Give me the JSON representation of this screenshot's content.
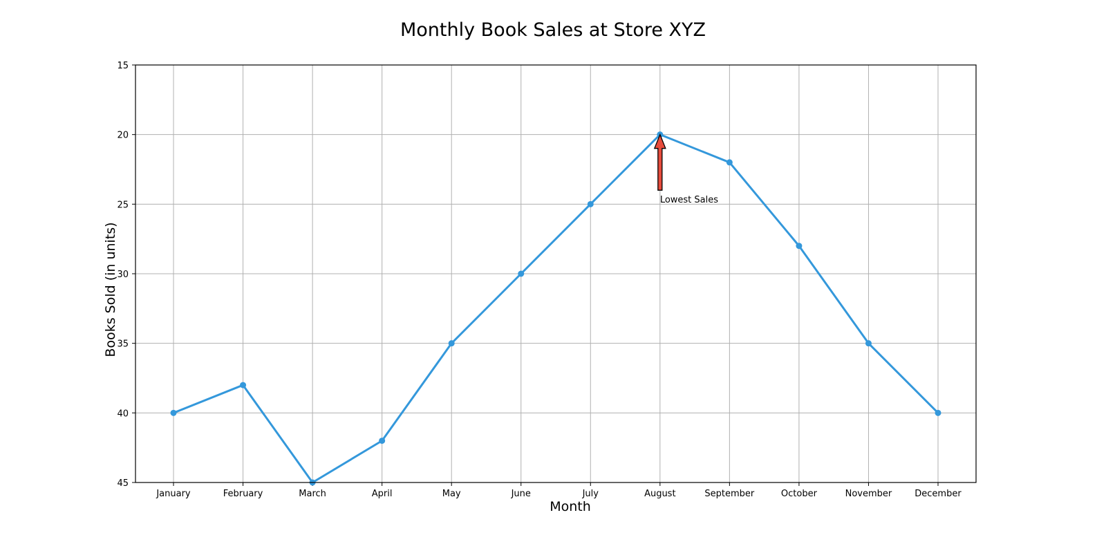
{
  "chart_data": {
    "type": "line",
    "title": "Monthly Book Sales at Store XYZ",
    "xlabel": "Month",
    "ylabel": "Books Sold (in units)",
    "categories": [
      "January",
      "February",
      "March",
      "April",
      "May",
      "June",
      "July",
      "August",
      "September",
      "October",
      "November",
      "December"
    ],
    "series": [
      {
        "values": [
          40,
          38,
          45,
          42,
          35,
          30,
          25,
          20,
          22,
          28,
          35,
          40
        ],
        "color": "#3498db"
      }
    ],
    "ylim": [
      15,
      45
    ],
    "y_inverted": true,
    "yticks": [
      15,
      20,
      25,
      30,
      35,
      40,
      45
    ],
    "grid": true,
    "annotation": {
      "text": "Lowest Sales",
      "target_category": "August",
      "target_value": 20,
      "text_value": 24,
      "arrow_color": "#e74c3c"
    }
  }
}
